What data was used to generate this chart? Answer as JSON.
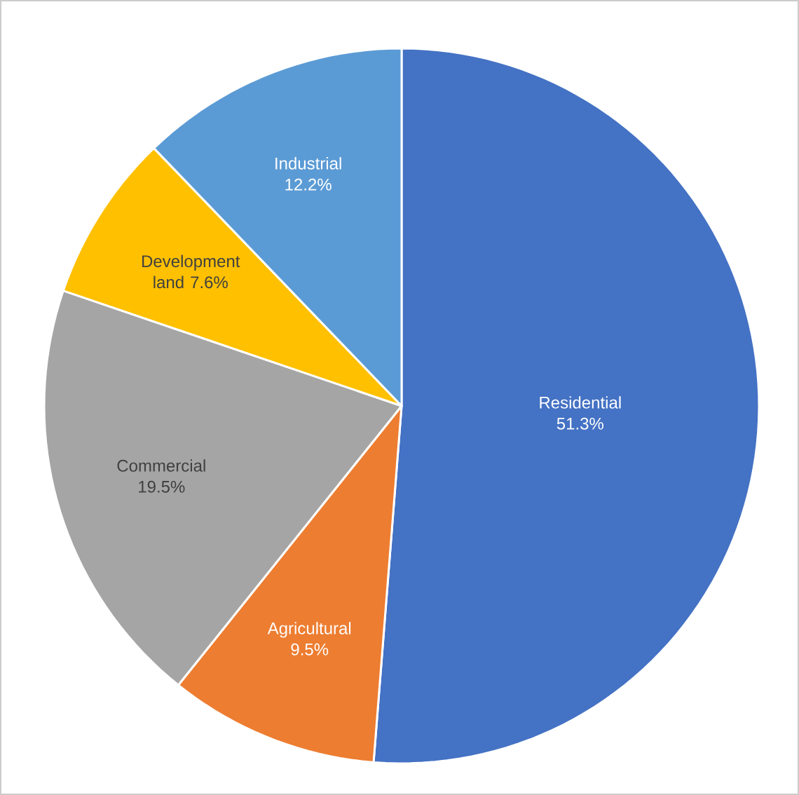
{
  "chart_data": {
    "type": "pie",
    "categories": [
      "Residential",
      "Agricultural",
      "Commercial",
      "Development land",
      "Industrial"
    ],
    "values": [
      51.3,
      9.5,
      19.5,
      7.6,
      12.2
    ],
    "colors": [
      "#4472c4",
      "#ed7d31",
      "#a5a5a5",
      "#ffc000",
      "#5b9bd5"
    ],
    "value_labels": [
      "51.3%",
      "9.5%",
      "19.5%",
      "7.6%",
      "12.2%"
    ]
  }
}
